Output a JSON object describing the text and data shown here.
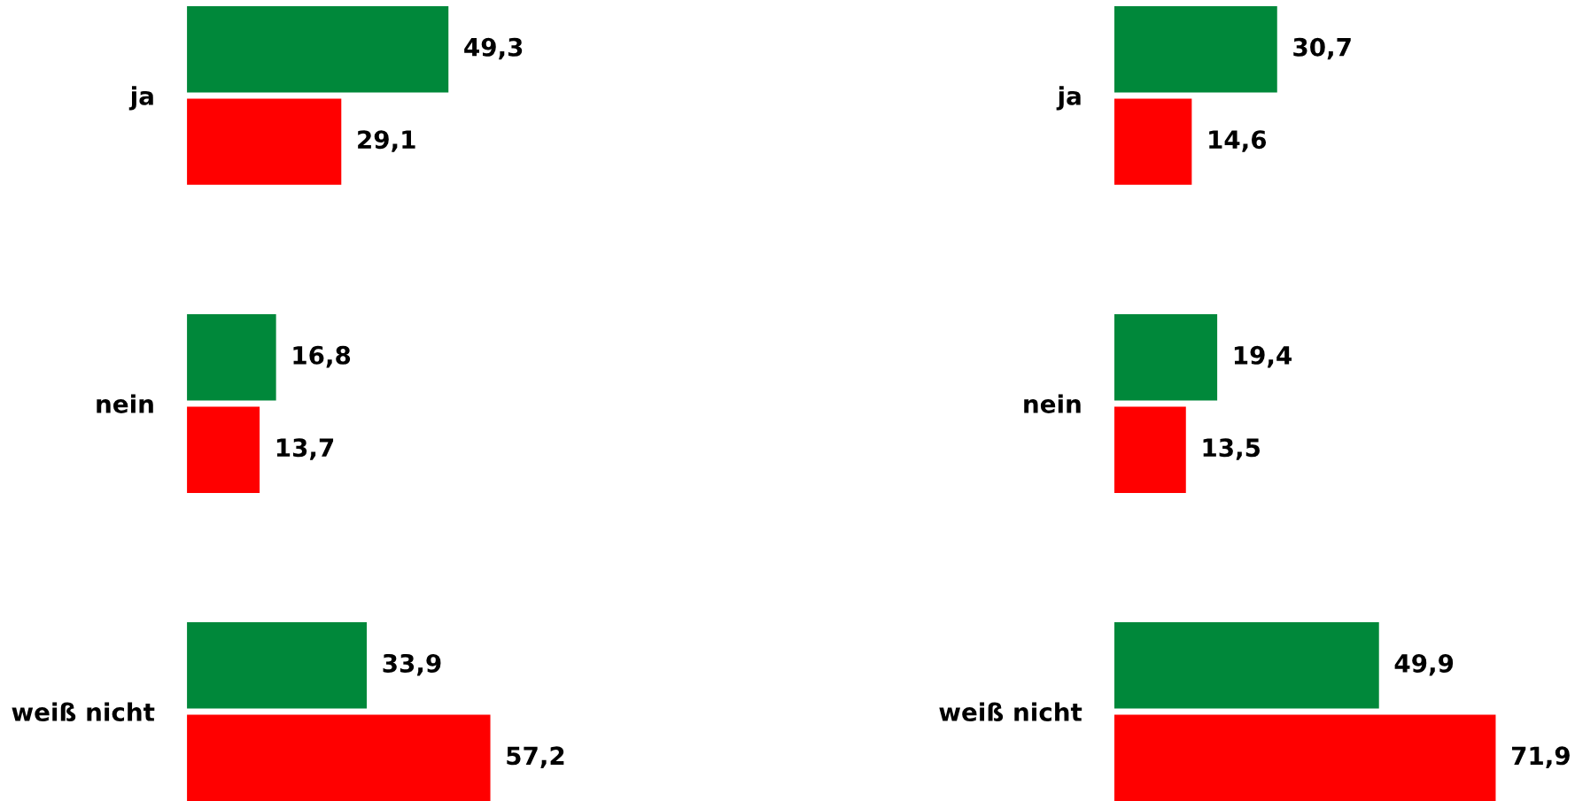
{
  "chart_data": [
    {
      "type": "bar",
      "orientation": "horizontal",
      "categories": [
        "ja",
        "nein",
        "weiß nicht"
      ],
      "legend": false,
      "series": [
        {
          "color": "#00883a",
          "values": [
            49.3,
            16.8,
            33.9
          ],
          "value_labels": [
            "49,3",
            "16,8",
            "33,9"
          ]
        },
        {
          "color": "#ff0000",
          "values": [
            29.1,
            13.7,
            57.2
          ],
          "value_labels": [
            "29,1",
            "13,7",
            "57,2"
          ]
        }
      ]
    },
    {
      "type": "bar",
      "orientation": "horizontal",
      "categories": [
        "ja",
        "nein",
        "weiß nicht"
      ],
      "legend": false,
      "series": [
        {
          "color": "#00883a",
          "values": [
            30.7,
            19.4,
            49.9
          ],
          "value_labels": [
            "30,7",
            "19,4",
            "49,9"
          ]
        },
        {
          "color": "#ff0000",
          "values": [
            14.6,
            13.5,
            71.9
          ],
          "value_labels": [
            "14,6",
            "13,5",
            "71,9"
          ]
        }
      ]
    }
  ]
}
